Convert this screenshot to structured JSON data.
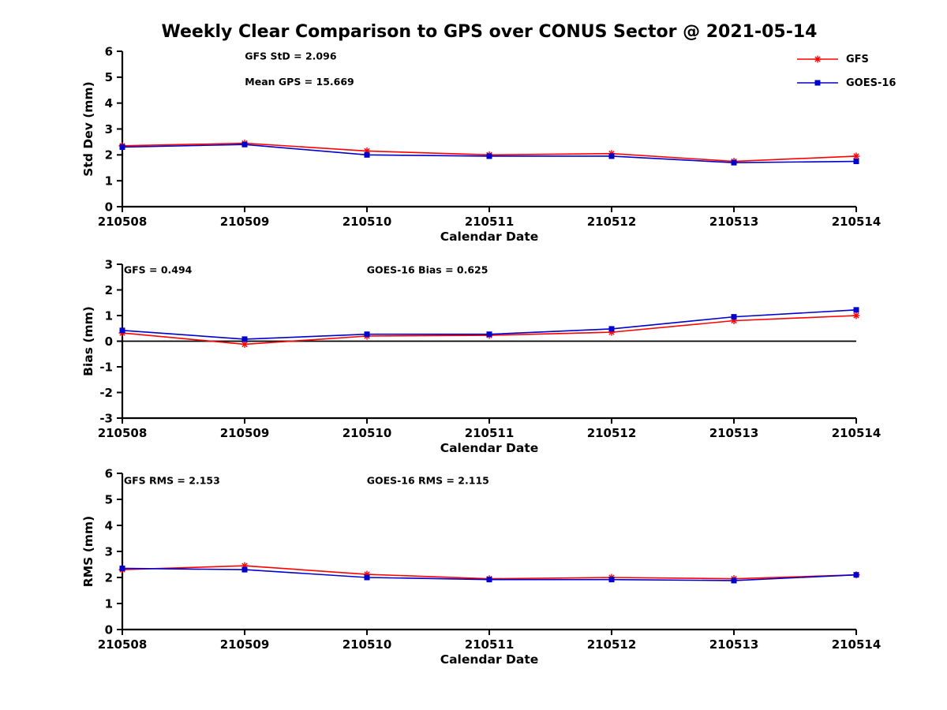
{
  "title": "Weekly Clear Comparison to GPS over CONUS Sector @ 2021-05-14",
  "colors": {
    "gfs": "#ff0000",
    "goes16": "#0000cc",
    "axis": "#000000"
  },
  "legend": [
    {
      "label": "GFS",
      "color": "#ff0000",
      "marker": "star"
    },
    {
      "label": "GOES-16",
      "color": "#0000cc",
      "marker": "square"
    }
  ],
  "chart_data": [
    {
      "type": "line",
      "title": "",
      "xlabel": "Calendar Date",
      "ylabel": "Std Dev (mm)",
      "ylim": [
        0,
        6
      ],
      "yticks": [
        0,
        1,
        2,
        3,
        4,
        5,
        6
      ],
      "grid": false,
      "zero_line": false,
      "categories": [
        "210508",
        "210509",
        "210510",
        "210511",
        "210512",
        "210513",
        "210514"
      ],
      "annotations": [
        {
          "text": "GFS StD = 2.096",
          "fx": 0.167,
          "fy": 0.005
        },
        {
          "text": "Mean GPS = 15.669",
          "fx": 0.167,
          "fy": 0.17
        }
      ],
      "series": [
        {
          "name": "GFS",
          "color": "#ff0000",
          "marker": "star",
          "values": [
            2.35,
            2.45,
            2.15,
            2.0,
            2.05,
            1.75,
            1.95
          ]
        },
        {
          "name": "GOES-16",
          "color": "#0000cc",
          "marker": "square",
          "values": [
            2.3,
            2.4,
            2.0,
            1.95,
            1.95,
            1.7,
            1.75
          ]
        }
      ]
    },
    {
      "type": "line",
      "title": "",
      "xlabel": "Calendar Date",
      "ylabel": "Bias (mm)",
      "ylim": [
        -3,
        3
      ],
      "yticks": [
        -3,
        -2,
        -1,
        0,
        1,
        2,
        3
      ],
      "grid": false,
      "zero_line": true,
      "categories": [
        "210508",
        "210509",
        "210510",
        "210511",
        "210512",
        "210513",
        "210514"
      ],
      "annotations": [
        {
          "text": "GFS = 0.494",
          "fx": 0.002,
          "fy": 0.01
        },
        {
          "text": "GOES-16 Bias = 0.625",
          "fx": 0.333,
          "fy": 0.01
        }
      ],
      "series": [
        {
          "name": "GFS",
          "color": "#ff0000",
          "marker": "star",
          "values": [
            0.32,
            -0.12,
            0.2,
            0.23,
            0.35,
            0.8,
            1.0
          ]
        },
        {
          "name": "GOES-16",
          "color": "#0000cc",
          "marker": "square",
          "values": [
            0.42,
            0.08,
            0.27,
            0.27,
            0.48,
            0.95,
            1.22
          ]
        }
      ]
    },
    {
      "type": "line",
      "title": "",
      "xlabel": "Calendar Date",
      "ylabel": "RMS (mm)",
      "ylim": [
        0,
        6
      ],
      "yticks": [
        0,
        1,
        2,
        3,
        4,
        5,
        6
      ],
      "grid": false,
      "zero_line": false,
      "categories": [
        "210508",
        "210509",
        "210510",
        "210511",
        "210512",
        "210513",
        "210514"
      ],
      "annotations": [
        {
          "text": "GFS RMS = 2.153",
          "fx": 0.002,
          "fy": 0.02
        },
        {
          "text": "GOES-16 RMS = 2.115",
          "fx": 0.333,
          "fy": 0.02
        }
      ],
      "series": [
        {
          "name": "GFS",
          "color": "#ff0000",
          "marker": "star",
          "values": [
            2.3,
            2.45,
            2.12,
            1.95,
            2.0,
            1.95,
            2.1
          ]
        },
        {
          "name": "GOES-16",
          "color": "#0000cc",
          "marker": "square",
          "values": [
            2.35,
            2.3,
            2.0,
            1.92,
            1.92,
            1.88,
            2.1
          ]
        }
      ]
    }
  ]
}
